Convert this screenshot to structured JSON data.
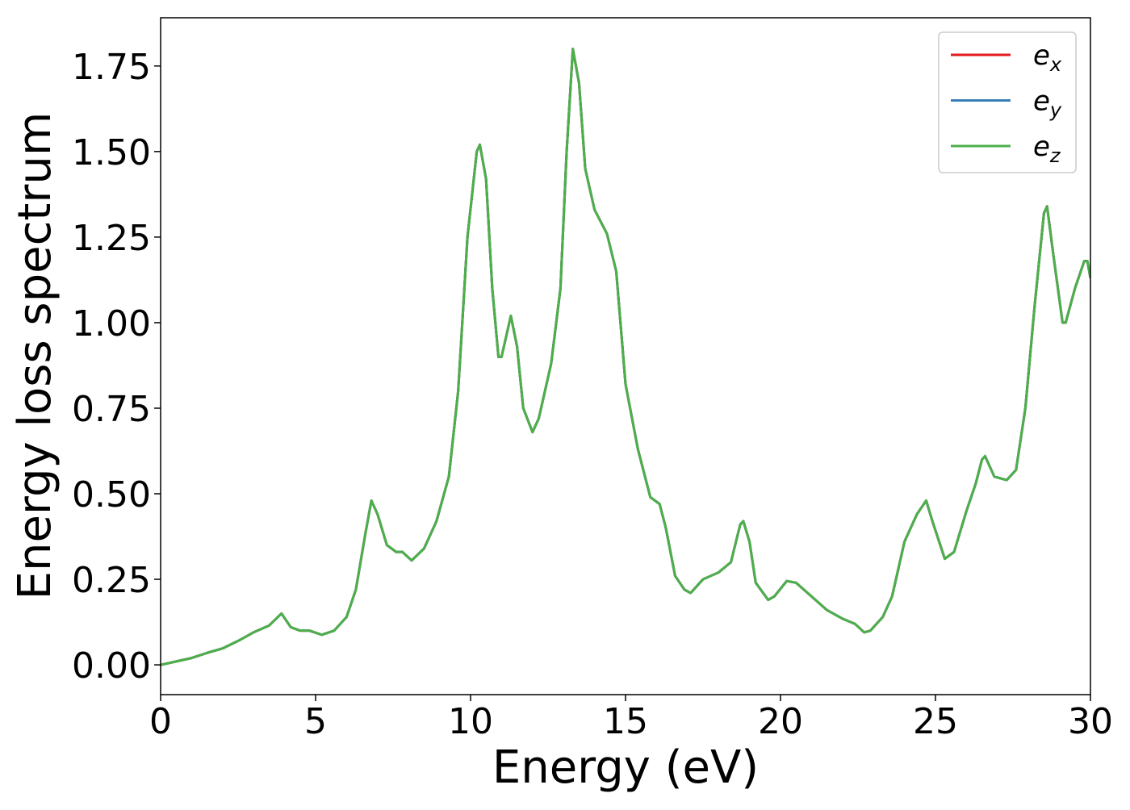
{
  "chart_data": {
    "type": "line",
    "x_label": "Energy (eV)",
    "y_label": "Energy loss spectrum",
    "x": [
      0,
      0.5,
      1,
      1.5,
      2,
      2.5,
      3,
      3.5,
      3.9,
      4.2,
      4.5,
      4.8,
      5.2,
      5.6,
      6,
      6.3,
      6.6,
      6.8,
      7,
      7.3,
      7.6,
      7.8,
      8.1,
      8.5,
      8.9,
      9.3,
      9.6,
      9.9,
      10.2,
      10.3,
      10.5,
      10.7,
      10.9,
      11.0,
      11.3,
      11.5,
      11.7,
      12.0,
      12.2,
      12.6,
      12.9,
      13.1,
      13.3,
      13.5,
      13.7,
      14.0,
      14.4,
      14.7,
      15.0,
      15.4,
      15.8,
      16.1,
      16.3,
      16.6,
      16.9,
      17.1,
      17.5,
      18.0,
      18.4,
      18.7,
      18.8,
      19.0,
      19.2,
      19.6,
      19.8,
      20.2,
      20.5,
      21.0,
      21.5,
      22.0,
      22.4,
      22.7,
      22.9,
      23.3,
      23.6,
      24.0,
      24.4,
      24.7,
      24.9,
      25.3,
      25.6,
      26.0,
      26.3,
      26.5,
      26.6,
      26.9,
      27.3,
      27.6,
      27.9,
      28.2,
      28.5,
      28.6,
      28.8,
      29.1,
      29.2,
      29.5,
      29.8,
      29.9,
      30
    ],
    "series": [
      {
        "name": "ex",
        "color": "#e41a1c",
        "values": [
          0.0,
          0.01,
          0.02,
          0.035,
          0.048,
          0.07,
          0.095,
          0.115,
          0.15,
          0.11,
          0.1,
          0.1,
          0.088,
          0.1,
          0.14,
          0.22,
          0.38,
          0.48,
          0.44,
          0.35,
          0.33,
          0.33,
          0.305,
          0.34,
          0.42,
          0.55,
          0.8,
          1.25,
          1.5,
          1.52,
          1.42,
          1.1,
          0.9,
          0.9,
          1.02,
          0.93,
          0.75,
          0.68,
          0.72,
          0.88,
          1.1,
          1.5,
          1.8,
          1.7,
          1.45,
          1.33,
          1.26,
          1.15,
          0.82,
          0.63,
          0.49,
          0.47,
          0.4,
          0.26,
          0.22,
          0.21,
          0.25,
          0.27,
          0.3,
          0.41,
          0.42,
          0.36,
          0.24,
          0.19,
          0.2,
          0.245,
          0.24,
          0.2,
          0.16,
          0.135,
          0.12,
          0.095,
          0.1,
          0.14,
          0.2,
          0.36,
          0.44,
          0.48,
          0.42,
          0.31,
          0.33,
          0.45,
          0.53,
          0.6,
          0.61,
          0.55,
          0.54,
          0.57,
          0.75,
          1.05,
          1.32,
          1.34,
          1.2,
          1.0,
          1.0,
          1.1,
          1.18,
          1.18,
          1.13
        ]
      },
      {
        "name": "ey",
        "color": "#377eb8",
        "values": [
          0.0,
          0.01,
          0.02,
          0.035,
          0.048,
          0.07,
          0.095,
          0.115,
          0.15,
          0.11,
          0.1,
          0.1,
          0.088,
          0.1,
          0.14,
          0.22,
          0.38,
          0.48,
          0.44,
          0.35,
          0.33,
          0.33,
          0.305,
          0.34,
          0.42,
          0.55,
          0.8,
          1.25,
          1.5,
          1.52,
          1.42,
          1.1,
          0.9,
          0.9,
          1.02,
          0.93,
          0.75,
          0.68,
          0.72,
          0.88,
          1.1,
          1.5,
          1.8,
          1.7,
          1.45,
          1.33,
          1.26,
          1.15,
          0.82,
          0.63,
          0.49,
          0.47,
          0.4,
          0.26,
          0.22,
          0.21,
          0.25,
          0.27,
          0.3,
          0.41,
          0.42,
          0.36,
          0.24,
          0.19,
          0.2,
          0.245,
          0.24,
          0.2,
          0.16,
          0.135,
          0.12,
          0.095,
          0.1,
          0.14,
          0.2,
          0.36,
          0.44,
          0.48,
          0.42,
          0.31,
          0.33,
          0.45,
          0.53,
          0.6,
          0.61,
          0.55,
          0.54,
          0.57,
          0.75,
          1.05,
          1.32,
          1.34,
          1.2,
          1.0,
          1.0,
          1.1,
          1.18,
          1.18,
          1.13
        ]
      },
      {
        "name": "ez",
        "color": "#4daf4a",
        "values": [
          0.0,
          0.01,
          0.02,
          0.035,
          0.048,
          0.07,
          0.095,
          0.115,
          0.15,
          0.11,
          0.1,
          0.1,
          0.088,
          0.1,
          0.14,
          0.22,
          0.38,
          0.48,
          0.44,
          0.35,
          0.33,
          0.33,
          0.305,
          0.34,
          0.42,
          0.55,
          0.8,
          1.25,
          1.5,
          1.52,
          1.42,
          1.1,
          0.9,
          0.9,
          1.02,
          0.93,
          0.75,
          0.68,
          0.72,
          0.88,
          1.1,
          1.5,
          1.8,
          1.7,
          1.45,
          1.33,
          1.26,
          1.15,
          0.82,
          0.63,
          0.49,
          0.47,
          0.4,
          0.26,
          0.22,
          0.21,
          0.25,
          0.27,
          0.3,
          0.41,
          0.42,
          0.36,
          0.24,
          0.19,
          0.2,
          0.245,
          0.24,
          0.2,
          0.16,
          0.135,
          0.12,
          0.095,
          0.1,
          0.14,
          0.2,
          0.36,
          0.44,
          0.48,
          0.42,
          0.31,
          0.33,
          0.45,
          0.53,
          0.6,
          0.61,
          0.55,
          0.54,
          0.57,
          0.75,
          1.05,
          1.32,
          1.34,
          1.2,
          1.0,
          1.0,
          1.1,
          1.18,
          1.18,
          1.13
        ]
      }
    ],
    "xlim": [
      0,
      30
    ],
    "xticks": [
      0,
      5,
      10,
      15,
      20,
      25,
      30
    ],
    "ylim": [
      -0.087,
      1.891
    ],
    "yticks": [
      {
        "value": 0,
        "label": "0.00"
      },
      {
        "value": 0.25,
        "label": "0.25"
      },
      {
        "value": 0.5,
        "label": "0.50"
      },
      {
        "value": 0.75,
        "label": "0.75"
      },
      {
        "value": 1,
        "label": "1.00"
      },
      {
        "value": 1.25,
        "label": "1.25"
      },
      {
        "value": 1.5,
        "label": "1.50"
      },
      {
        "value": 1.75,
        "label": "1.75"
      }
    ],
    "legend": "upper right",
    "grid": false
  }
}
